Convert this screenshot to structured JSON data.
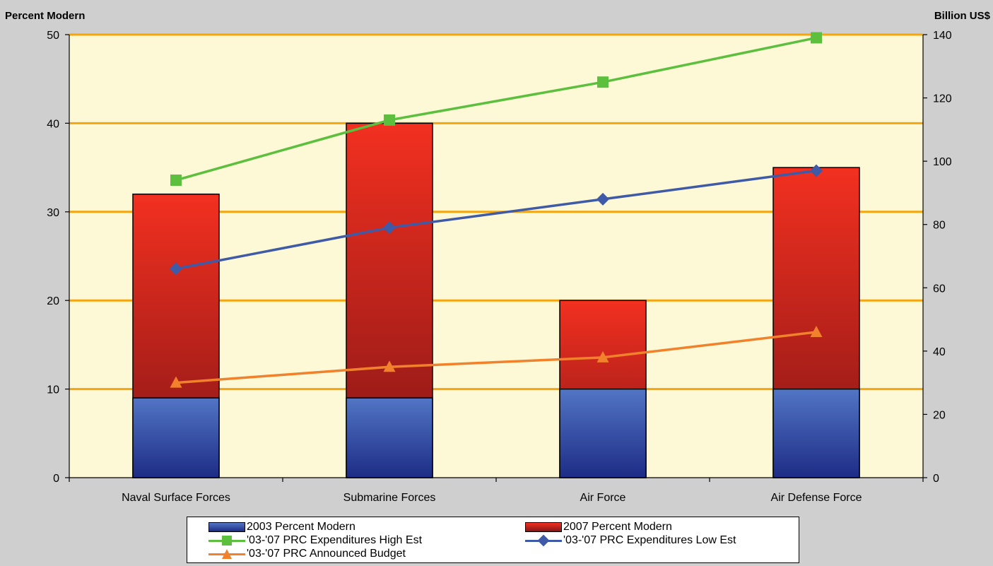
{
  "left_axis_title": "Percent Modern",
  "right_axis_title": "Billion US$",
  "colors": {
    "background": "#cfcfcf",
    "plot_bg": "#fdf9d7",
    "gridline": "#f5a60f",
    "bar_2003_top": "#5275c4",
    "bar_2003_bottom": "#1d2c86",
    "bar_2007_top": "#f23020",
    "bar_2007_bottom": "#861616",
    "high_est": "#5cbf3e",
    "low_est": "#3f5aa6",
    "budget": "#f1822b"
  },
  "legend": {
    "items": [
      {
        "label": "2003 Percent Modern",
        "symbol": "box-2003"
      },
      {
        "label": "2007 Percent Modern",
        "symbol": "box-2007"
      },
      {
        "label": "'03-'07 PRC Expenditures High Est",
        "symbol": "line-square"
      },
      {
        "label": "'03-'07 PRC Expenditures Low Est",
        "symbol": "line-diamond"
      },
      {
        "label": "'03-'07 PRC Announced Budget",
        "symbol": "line-triangle"
      }
    ]
  },
  "chart_data": {
    "type": "bar",
    "categories": [
      "Naval Surface Forces",
      "Submarine Forces",
      "Air Force",
      "Air Defense Force"
    ],
    "left_axis": {
      "min": 0,
      "max": 50,
      "ticks": [
        "0",
        "10",
        "20",
        "30",
        "40",
        "50"
      ],
      "tick_values": [
        0,
        10,
        20,
        30,
        40,
        50
      ]
    },
    "right_axis": {
      "min": 0,
      "max": 140,
      "ticks": [
        "0",
        "20",
        "40",
        "60",
        "80",
        "100",
        "120",
        "140"
      ],
      "tick_values": [
        0,
        20,
        40,
        60,
        80,
        100,
        120,
        140
      ]
    },
    "grid": true,
    "legend_position": "bottom",
    "bar_series": [
      {
        "name": "2003 Percent Modern",
        "values": [
          9,
          9,
          10,
          10
        ]
      },
      {
        "name": "2007 Percent Modern",
        "values": [
          32,
          40,
          20,
          35
        ]
      }
    ],
    "line_series": [
      {
        "name": "'03-'07 PRC Expenditures High Est",
        "axis": "right",
        "marker": "square",
        "values": [
          94,
          113,
          125,
          139
        ]
      },
      {
        "name": "'03-'07 PRC Expenditures Low Est",
        "axis": "right",
        "marker": "diamond",
        "values": [
          66,
          79,
          88,
          97
        ]
      },
      {
        "name": "'03-'07 PRC Announced Budget",
        "axis": "right",
        "marker": "triangle",
        "values": [
          30,
          35,
          38,
          46
        ]
      }
    ]
  }
}
